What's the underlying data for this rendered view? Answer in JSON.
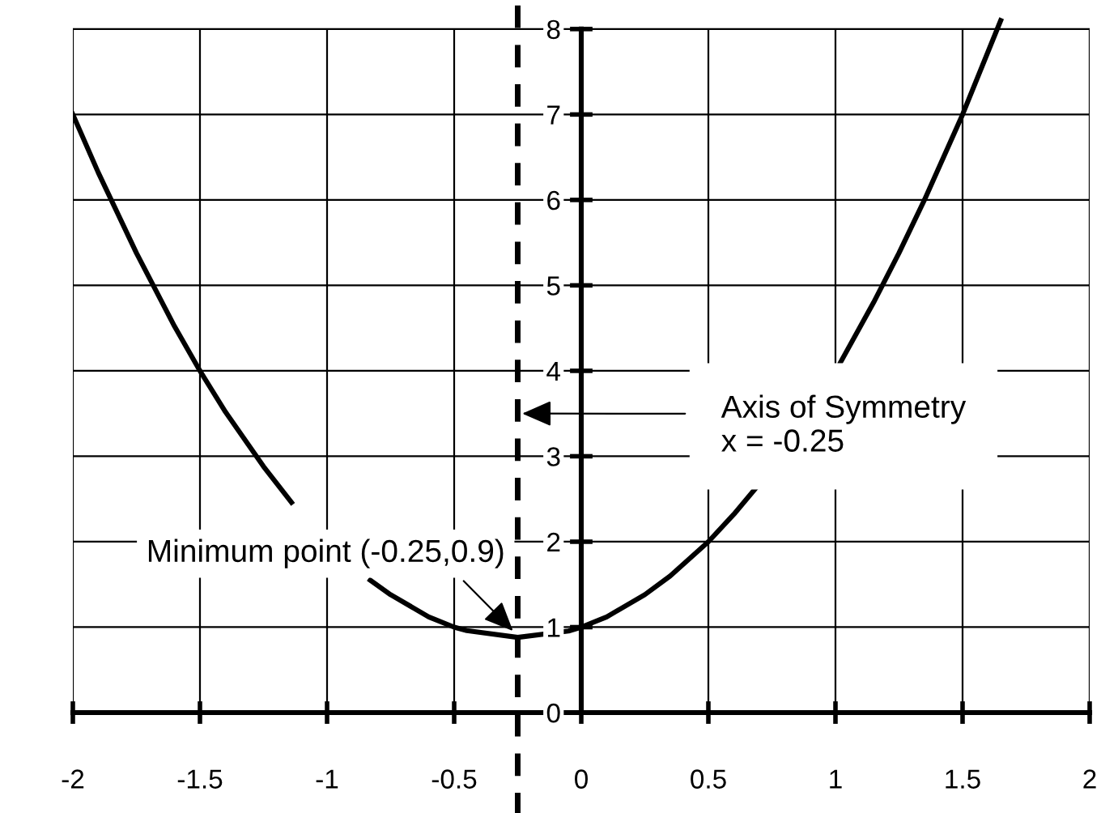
{
  "chart_data": {
    "type": "line",
    "x": [
      -2.0,
      -1.9,
      -1.75,
      -1.6,
      -1.5,
      -1.4,
      -1.25,
      -1.14,
      -1.0,
      -0.83,
      -0.75,
      -0.6,
      -0.5,
      -0.45,
      -0.25,
      -0.05,
      0.0,
      0.1,
      0.25,
      0.35,
      0.5,
      0.6,
      0.69,
      0.85,
      1.02,
      1.15,
      1.25,
      1.35,
      1.5,
      1.65
    ],
    "series": [
      {
        "color": "#000000",
        "values": [
          7.0,
          6.32,
          5.38,
          4.52,
          4.0,
          3.52,
          2.88,
          2.46,
          null,
          1.55,
          1.38,
          1.12,
          1.0,
          0.96,
          0.88,
          0.955,
          1.0,
          1.12,
          1.38,
          1.6,
          2.0,
          2.32,
          2.64,
          null,
          4.1,
          4.8,
          5.38,
          6.0,
          7.0,
          8.1
        ]
      }
    ],
    "xlim": [
      -2,
      2
    ],
    "ylim": [
      0,
      8.34
    ],
    "xticks": [
      -2,
      -1.5,
      -1,
      -0.5,
      0,
      0.5,
      1,
      1.5,
      2
    ],
    "yticks": [
      0,
      1,
      2,
      3,
      4,
      5,
      6,
      7,
      8
    ],
    "grid": true,
    "marker": "none",
    "line_style": "solid",
    "ref_lines": [
      {
        "axis": "x",
        "value": -0.25,
        "color": "#000000",
        "line_style": "dashed"
      }
    ],
    "annotations": [
      {
        "text": "Minimum point (-0.25,0.9)",
        "x": -0.25,
        "y": 0.9
      },
      {
        "text": "Axis of Symmetry\nx = -0.25",
        "x": -0.25,
        "y": 3.5
      }
    ]
  }
}
